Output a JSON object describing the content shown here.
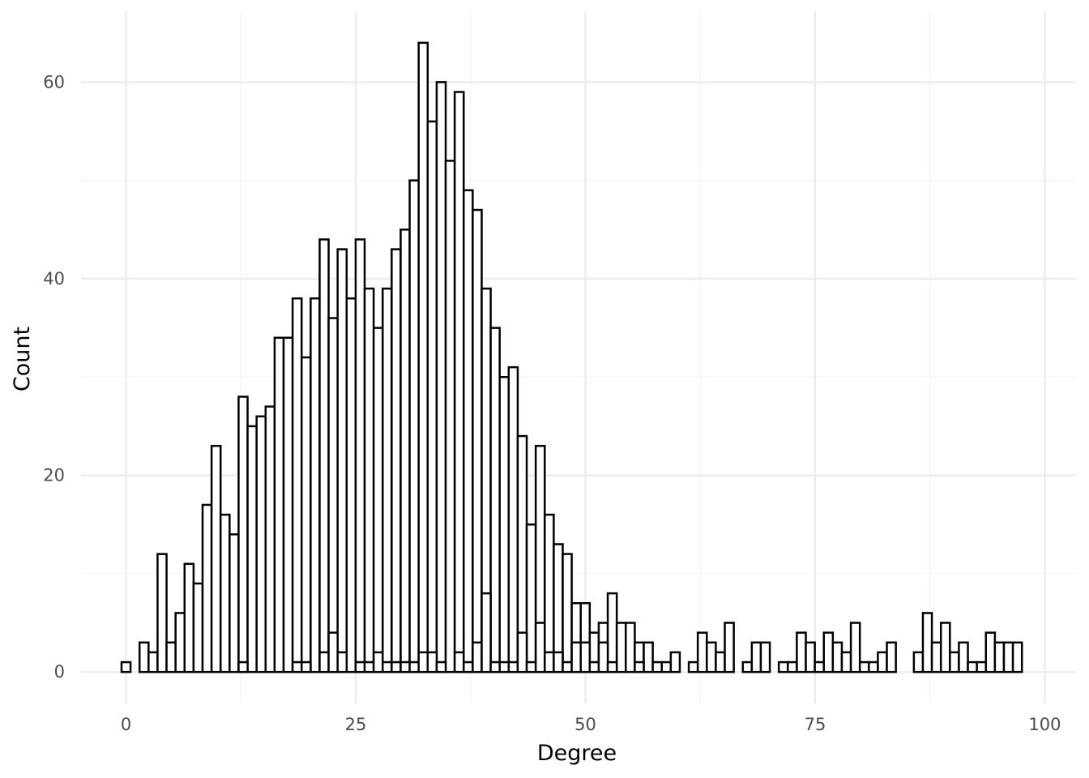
{
  "chart_data": {
    "type": "bar",
    "subtype": "histogram",
    "title": "",
    "xlabel": "Degree",
    "ylabel": "Count",
    "xlim": [
      -4.9,
      103.4
    ],
    "ylim": [
      -3.2,
      67.2
    ],
    "x_ticks": [
      0,
      25,
      50,
      75,
      100
    ],
    "x_tick_labels": [
      "0",
      "25",
      "50",
      "75",
      "100"
    ],
    "y_ticks": [
      0,
      20,
      40,
      60
    ],
    "y_tick_labels": [
      "0",
      "20",
      "40",
      "60"
    ],
    "grid": true,
    "legend": "none",
    "bin_width": 0.98,
    "bar_fill": "#ffffff",
    "bar_stroke": "#000000",
    "bins": [
      {
        "x": 0.0,
        "count": 1
      },
      {
        "x": 1.96,
        "count": 3
      },
      {
        "x": 2.94,
        "count": 2
      },
      {
        "x": 3.92,
        "count": 12
      },
      {
        "x": 4.9,
        "count": 3
      },
      {
        "x": 5.88,
        "count": 6
      },
      {
        "x": 6.86,
        "count": 11
      },
      {
        "x": 7.84,
        "count": 9
      },
      {
        "x": 8.82,
        "count": 17
      },
      {
        "x": 9.8,
        "count": 23
      },
      {
        "x": 10.78,
        "count": 16
      },
      {
        "x": 11.76,
        "count": 14
      },
      {
        "x": 12.74,
        "count": 28
      },
      {
        "x": 13.72,
        "count": 25
      },
      {
        "x": 14.7,
        "count": 26
      },
      {
        "x": 15.68,
        "count": 27
      },
      {
        "x": 16.66,
        "count": 34
      },
      {
        "x": 17.64,
        "count": 34
      },
      {
        "x": 18.62,
        "count": 38
      },
      {
        "x": 19.6,
        "count": 32
      },
      {
        "x": 20.58,
        "count": 38
      },
      {
        "x": 21.56,
        "count": 44
      },
      {
        "x": 22.54,
        "count": 36
      },
      {
        "x": 23.52,
        "count": 43
      },
      {
        "x": 24.5,
        "count": 38
      },
      {
        "x": 25.48,
        "count": 44
      },
      {
        "x": 26.46,
        "count": 39
      },
      {
        "x": 27.44,
        "count": 35
      },
      {
        "x": 28.42,
        "count": 39
      },
      {
        "x": 29.4,
        "count": 43
      },
      {
        "x": 30.38,
        "count": 45
      },
      {
        "x": 31.36,
        "count": 50
      },
      {
        "x": 32.34,
        "count": 64
      },
      {
        "x": 33.32,
        "count": 56
      },
      {
        "x": 34.3,
        "count": 60
      },
      {
        "x": 35.28,
        "count": 52
      },
      {
        "x": 36.26,
        "count": 59
      },
      {
        "x": 37.24,
        "count": 49
      },
      {
        "x": 38.22,
        "count": 47
      },
      {
        "x": 39.2,
        "count": 39
      },
      {
        "x": 40.18,
        "count": 35
      },
      {
        "x": 41.16,
        "count": 30
      },
      {
        "x": 42.14,
        "count": 31
      },
      {
        "x": 43.12,
        "count": 24
      },
      {
        "x": 44.1,
        "count": 15
      },
      {
        "x": 45.08,
        "count": 23
      },
      {
        "x": 46.06,
        "count": 16
      },
      {
        "x": 47.04,
        "count": 13
      },
      {
        "x": 48.02,
        "count": 12
      },
      {
        "x": 49.0,
        "count": 7
      },
      {
        "x": 49.98,
        "count": 7
      },
      {
        "x": 50.96,
        "count": 4
      },
      {
        "x": 51.94,
        "count": 5
      },
      {
        "x": 52.92,
        "count": 8
      },
      {
        "x": 53.9,
        "count": 5
      },
      {
        "x": 54.88,
        "count": 5
      },
      {
        "x": 55.86,
        "count": 3
      },
      {
        "x": 56.84,
        "count": 3
      },
      {
        "x": 57.82,
        "count": 1
      },
      {
        "x": 58.8,
        "count": 1
      },
      {
        "x": 59.78,
        "count": 2
      },
      {
        "x": 61.74,
        "count": 1
      },
      {
        "x": 62.72,
        "count": 4
      },
      {
        "x": 63.7,
        "count": 3
      },
      {
        "x": 64.68,
        "count": 2
      },
      {
        "x": 65.66,
        "count": 5
      },
      {
        "x": 67.62,
        "count": 1
      },
      {
        "x": 68.6,
        "count": 3
      },
      {
        "x": 69.58,
        "count": 3
      },
      {
        "x": 71.54,
        "count": 1
      },
      {
        "x": 72.52,
        "count": 1
      },
      {
        "x": 73.5,
        "count": 4
      },
      {
        "x": 74.48,
        "count": 3
      },
      {
        "x": 75.46,
        "count": 1
      },
      {
        "x": 76.44,
        "count": 4
      },
      {
        "x": 77.42,
        "count": 3
      },
      {
        "x": 78.4,
        "count": 2
      },
      {
        "x": 79.38,
        "count": 5
      },
      {
        "x": 80.36,
        "count": 1
      },
      {
        "x": 81.34,
        "count": 1
      },
      {
        "x": 82.32,
        "count": 2
      },
      {
        "x": 83.3,
        "count": 3
      },
      {
        "x": 86.24,
        "count": 2
      },
      {
        "x": 87.22,
        "count": 6
      },
      {
        "x": 88.2,
        "count": 3
      },
      {
        "x": 89.18,
        "count": 5
      },
      {
        "x": 90.16,
        "count": 2
      },
      {
        "x": 91.14,
        "count": 3
      },
      {
        "x": 92.12,
        "count": 1
      },
      {
        "x": 93.1,
        "count": 1
      },
      {
        "x": 94.08,
        "count": 4
      },
      {
        "x": 95.06,
        "count": 3
      },
      {
        "x": 96.04,
        "count": 3
      },
      {
        "x": 97.02,
        "count": 3
      }
    ],
    "overlay_bins": [
      {
        "x": 12.74,
        "count": 1
      },
      {
        "x": 18.62,
        "count": 1
      },
      {
        "x": 19.6,
        "count": 1
      },
      {
        "x": 21.56,
        "count": 2
      },
      {
        "x": 22.54,
        "count": 4
      },
      {
        "x": 23.52,
        "count": 2
      },
      {
        "x": 25.48,
        "count": 1
      },
      {
        "x": 26.46,
        "count": 1
      },
      {
        "x": 27.44,
        "count": 2
      },
      {
        "x": 28.42,
        "count": 1
      },
      {
        "x": 29.4,
        "count": 1
      },
      {
        "x": 30.38,
        "count": 1
      },
      {
        "x": 31.36,
        "count": 1
      },
      {
        "x": 32.34,
        "count": 2
      },
      {
        "x": 33.32,
        "count": 2
      },
      {
        "x": 34.3,
        "count": 1
      },
      {
        "x": 36.26,
        "count": 2
      },
      {
        "x": 37.24,
        "count": 1
      },
      {
        "x": 38.22,
        "count": 3
      },
      {
        "x": 39.2,
        "count": 8
      },
      {
        "x": 40.18,
        "count": 1
      },
      {
        "x": 41.16,
        "count": 1
      },
      {
        "x": 42.14,
        "count": 1
      },
      {
        "x": 43.12,
        "count": 4
      },
      {
        "x": 44.1,
        "count": 1
      },
      {
        "x": 45.08,
        "count": 5
      },
      {
        "x": 46.06,
        "count": 2
      },
      {
        "x": 47.04,
        "count": 2
      },
      {
        "x": 48.02,
        "count": 1
      },
      {
        "x": 49.0,
        "count": 3
      },
      {
        "x": 49.98,
        "count": 3
      },
      {
        "x": 50.96,
        "count": 1
      },
      {
        "x": 51.94,
        "count": 3
      },
      {
        "x": 52.92,
        "count": 1
      },
      {
        "x": 55.86,
        "count": 1
      }
    ]
  }
}
